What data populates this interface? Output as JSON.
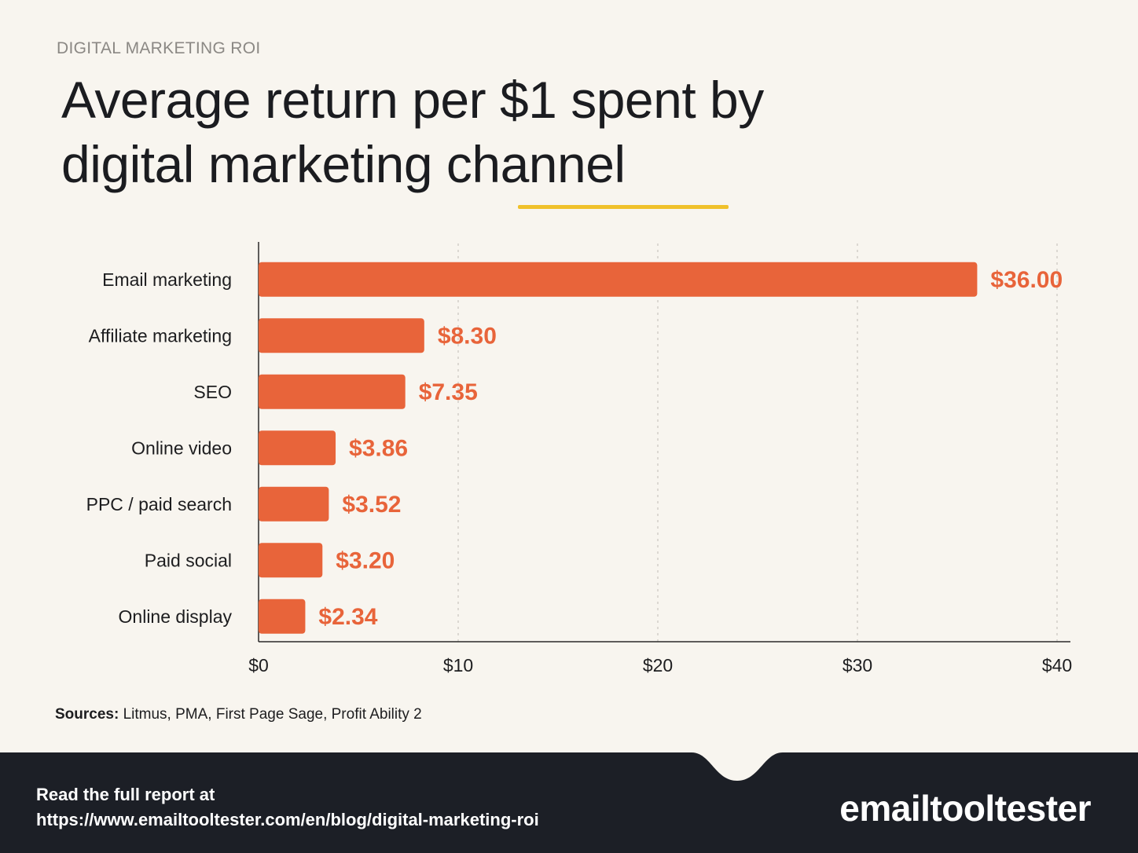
{
  "eyebrow": "DIGITAL MARKETING ROI",
  "title_line1": "Average return per $1 spent by",
  "title_line2": "digital marketing channel",
  "chart_data": {
    "type": "bar",
    "orientation": "horizontal",
    "categories": [
      "Email marketing",
      "Affiliate marketing",
      "SEO",
      "Online video",
      "PPC / paid search",
      "Paid social",
      "Online display"
    ],
    "values": [
      36.0,
      8.3,
      7.35,
      3.86,
      3.52,
      3.2,
      2.34
    ],
    "value_labels": [
      "$36.00",
      "$8.30",
      "$7.35",
      "$3.86",
      "$3.52",
      "$3.20",
      "$2.34"
    ],
    "xlim": [
      0,
      40
    ],
    "xticks": [
      0,
      10,
      20,
      30,
      40
    ],
    "xtick_labels": [
      "$0",
      "$10",
      "$20",
      "$30",
      "$40"
    ],
    "grid": "vertical dashed",
    "bar_color": "#e8643a"
  },
  "sources": {
    "label": "Sources:",
    "text": " Litmus, PMA, First Page Sage, Profit Ability 2"
  },
  "footer": {
    "line1": "Read the full report at",
    "line2": "https://www.emailtooltester.com/en/blog/digital-marketing-roi",
    "logo": "emailtooltester"
  },
  "colors": {
    "background": "#f8f5ef",
    "accent_underline": "#f0c12b",
    "footer_bg": "#1c1f26"
  }
}
